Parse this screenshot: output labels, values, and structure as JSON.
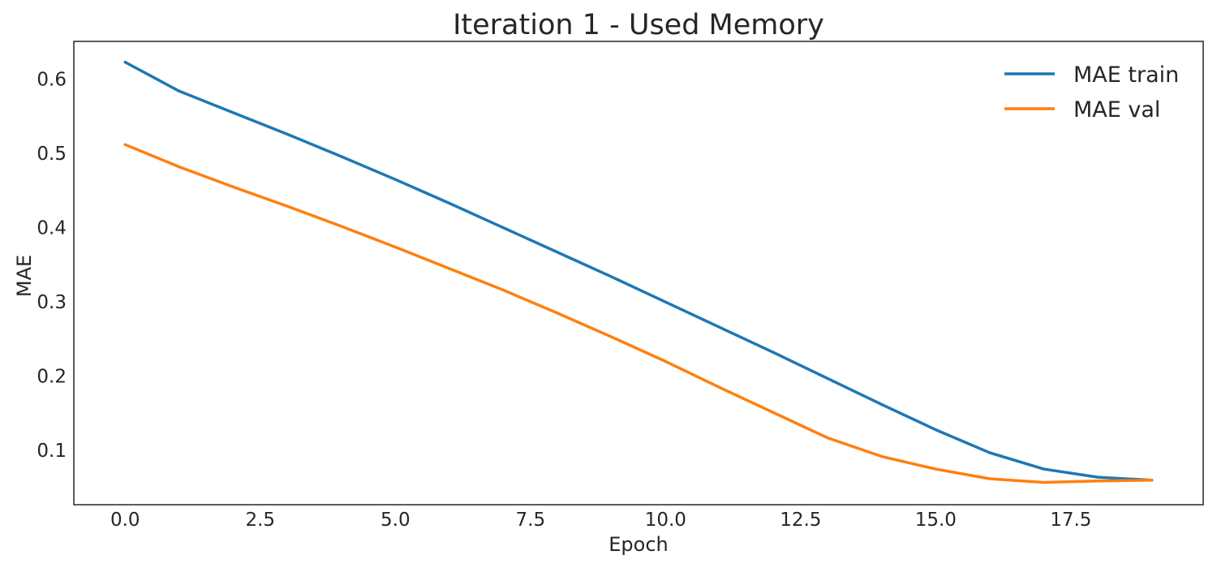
{
  "chart_data": {
    "type": "line",
    "title": "Iteration 1 - Used Memory",
    "xlabel": "Epoch",
    "ylabel": "MAE",
    "xlim": [
      -0.95,
      19.95
    ],
    "ylim": [
      0.027,
      0.651
    ],
    "x_ticks": [
      0.0,
      2.5,
      5.0,
      7.5,
      10.0,
      12.5,
      15.0,
      17.5
    ],
    "x_tick_labels": [
      "0.0",
      "2.5",
      "5.0",
      "7.5",
      "10.0",
      "12.5",
      "15.0",
      "17.5"
    ],
    "y_ticks": [
      0.1,
      0.2,
      0.3,
      0.4,
      0.5,
      0.6
    ],
    "y_tick_labels": [
      "0.1",
      "0.2",
      "0.3",
      "0.4",
      "0.5",
      "0.6"
    ],
    "grid": false,
    "legend_position": "top-right",
    "x": [
      0,
      1,
      2,
      3,
      4,
      5,
      6,
      7,
      8,
      9,
      10,
      11,
      12,
      13,
      14,
      15,
      16,
      17,
      18,
      19
    ],
    "series": [
      {
        "name": "MAE train",
        "color": "#1f77b4",
        "values": [
          0.623,
          0.584,
          0.555,
          0.526,
          0.496,
          0.465,
          0.433,
          0.4,
          0.367,
          0.334,
          0.3,
          0.266,
          0.232,
          0.197,
          0.162,
          0.128,
          0.097,
          0.075,
          0.064,
          0.06
        ]
      },
      {
        "name": "MAE val",
        "color": "#ff7f0e",
        "values": [
          0.512,
          0.482,
          0.455,
          0.429,
          0.402,
          0.374,
          0.345,
          0.316,
          0.285,
          0.253,
          0.22,
          0.185,
          0.151,
          0.117,
          0.092,
          0.075,
          0.062,
          0.057,
          0.059,
          0.06
        ]
      }
    ]
  }
}
